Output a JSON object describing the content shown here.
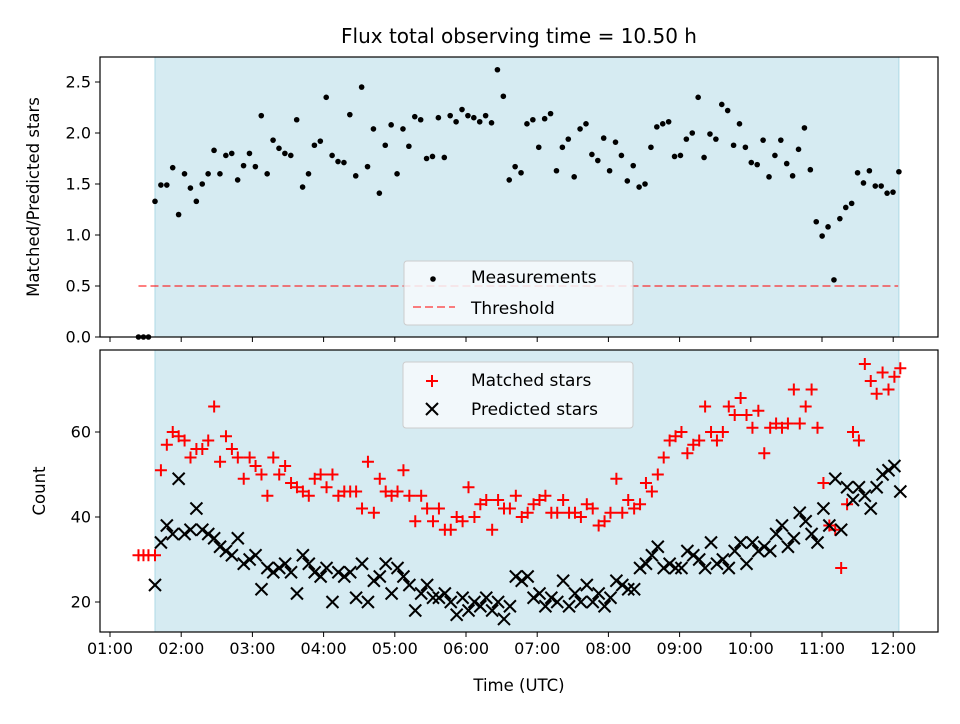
{
  "chart_data": [
    {
      "type": "scatter",
      "title": "Flux total observing time = 10.50 h",
      "xlabel": "",
      "ylabel": "Matched/Predicted stars",
      "ylim": [
        0,
        2.75
      ],
      "xlim_hours": [
        0.86,
        12.63
      ],
      "yticks": [
        "0.0",
        "0.5",
        "1.0",
        "1.5",
        "2.0",
        "2.5"
      ],
      "ytick_values": [
        0,
        0.5,
        1.0,
        1.5,
        2.0,
        2.5
      ],
      "shaded_span_hours": [
        1.632,
        12.08
      ],
      "shade_color": "#add8e6",
      "threshold": {
        "name": "Threshold",
        "value": 0.5,
        "from_hours": 1.4,
        "to_hours": 12.07,
        "color": "#ff0000",
        "style": "dashed"
      },
      "legend": {
        "position": "lower-center",
        "entries": [
          "Measurements",
          "Threshold"
        ]
      },
      "series": [
        {
          "name": "Measurements",
          "marker": "dot",
          "color": "#000000",
          "t_start_hours": 1.4,
          "t_end_hours": 1.54,
          "values": [
            0,
            0,
            0
          ]
        },
        {
          "name": "Measurements",
          "marker": "dot",
          "color": "#000000",
          "t_start_hours": 1.632,
          "t_end_hours": 12.08,
          "values": [
            1.33,
            1.49,
            1.49,
            1.66,
            1.2,
            1.6,
            1.46,
            1.33,
            1.5,
            1.6,
            1.83,
            1.6,
            1.78,
            1.8,
            1.54,
            1.68,
            1.8,
            1.67,
            2.17,
            1.6,
            1.93,
            1.85,
            1.8,
            1.78,
            2.13,
            1.47,
            1.6,
            1.88,
            1.92,
            2.35,
            1.78,
            1.72,
            1.71,
            2.18,
            1.58,
            2.45,
            1.67,
            2.04,
            1.41,
            1.88,
            2.08,
            1.6,
            2.04,
            1.87,
            2.16,
            2.13,
            1.75,
            1.77,
            2.15,
            1.76,
            2.17,
            2.11,
            2.23,
            2.17,
            2.15,
            2.11,
            2.17,
            2.1,
            2.62,
            2.36,
            1.54,
            1.67,
            1.61,
            2.09,
            2.13,
            1.86,
            2.14,
            2.19,
            1.63,
            1.86,
            1.94,
            1.57,
            2.04,
            2.09,
            1.79,
            1.73,
            1.95,
            1.63,
            1.91,
            1.78,
            1.53,
            1.68,
            1.47,
            1.5,
            1.86,
            2.06,
            2.09,
            2.11,
            1.77,
            1.78,
            1.94,
            2.0,
            2.35,
            1.76,
            1.99,
            1.94,
            2.28,
            2.22,
            1.88,
            2.09,
            1.86,
            1.71,
            1.69,
            1.93,
            1.57,
            1.78,
            1.93,
            1.7,
            1.58,
            1.84,
            2.05,
            1.64,
            1.13,
            0.99,
            1.08,
            0.56,
            1.16,
            1.27,
            1.31,
            1.61,
            1.51,
            1.63,
            1.48,
            1.48,
            1.41,
            1.42,
            1.62
          ]
        }
      ]
    },
    {
      "type": "scatter",
      "title": "",
      "xlabel": "Time (UTC)",
      "ylabel": "Count",
      "ylim": [
        12.9,
        79.3
      ],
      "xlim_hours": [
        0.86,
        12.63
      ],
      "yticks": [
        "20",
        "40",
        "60"
      ],
      "ytick_values": [
        20,
        40,
        60
      ],
      "xticks": [
        "01:00",
        "02:00",
        "03:00",
        "04:00",
        "05:00",
        "06:00",
        "07:00",
        "08:00",
        "09:00",
        "10:00",
        "11:00",
        "12:00"
      ],
      "xtick_values_hours": [
        1,
        2,
        3,
        4,
        5,
        6,
        7,
        8,
        9,
        10,
        11,
        12
      ],
      "shaded_span_hours": [
        1.632,
        12.08
      ],
      "legend": {
        "position": "top-center",
        "entries": [
          "Matched stars",
          "Predicted stars"
        ]
      },
      "series": [
        {
          "name": "Matched stars",
          "marker": "plus",
          "color": "#ff0000",
          "t_start_hours": 1.4,
          "t_end_hours": 1.54,
          "values": [
            31,
            31,
            31
          ]
        },
        {
          "name": "Matched stars",
          "marker": "plus",
          "color": "#ff0000",
          "t_start_hours": 1.632,
          "t_end_hours": 12.1,
          "values": [
            31,
            51,
            57,
            60,
            59,
            58,
            54,
            56,
            56,
            58,
            66,
            53,
            59,
            56,
            54,
            49,
            54,
            52,
            50,
            45,
            54,
            50,
            52,
            48,
            47,
            46,
            45,
            49,
            50,
            47,
            50,
            45,
            46,
            46,
            46,
            42,
            53,
            41,
            49,
            46,
            45,
            46,
            51,
            45,
            39,
            45,
            42,
            39,
            42,
            37,
            37,
            40,
            39,
            47,
            40,
            43,
            44,
            37,
            44,
            42,
            42,
            45,
            40,
            41,
            43,
            44,
            45,
            41,
            41,
            44,
            41,
            41,
            40,
            43,
            42,
            38,
            39,
            41,
            49,
            41,
            44,
            42,
            43,
            48,
            46,
            50,
            54,
            58,
            59,
            60,
            55,
            57,
            58,
            66,
            60,
            58,
            60,
            66,
            64,
            68,
            64,
            61,
            65,
            55,
            61,
            62,
            61,
            62,
            70,
            62,
            66,
            70,
            61,
            48,
            38,
            37,
            28,
            43,
            60,
            58,
            76,
            72,
            69,
            74,
            70,
            73,
            75
          ]
        },
        {
          "name": "Predicted stars",
          "marker": "x",
          "color": "#000000",
          "t_start_hours": 1.632,
          "t_end_hours": 12.1,
          "values": [
            24,
            34,
            38,
            36,
            49,
            36,
            37,
            42,
            37,
            36,
            35,
            33,
            32,
            31,
            35,
            29,
            30,
            31,
            23,
            28,
            27,
            28,
            29,
            27,
            22,
            31,
            29,
            27,
            26,
            28,
            20,
            27,
            26,
            27,
            21,
            29,
            20,
            25,
            26,
            29,
            22,
            28,
            26,
            24,
            18,
            22,
            24,
            21,
            21,
            22,
            20,
            17,
            21,
            18,
            20,
            19,
            21,
            18,
            20,
            16,
            19,
            26,
            25,
            26,
            21,
            22,
            19,
            21,
            20,
            25,
            19,
            22,
            20,
            24,
            20,
            22,
            19,
            21,
            25,
            24,
            23,
            23,
            28,
            29,
            31,
            33,
            28,
            29,
            28,
            28,
            32,
            31,
            30,
            28,
            34,
            29,
            30,
            28,
            32,
            34,
            29,
            34,
            32,
            33,
            32,
            36,
            38,
            33,
            35,
            41,
            39,
            36,
            34,
            42,
            38,
            49,
            37,
            47,
            44,
            47,
            45,
            42,
            47,
            50,
            51,
            52,
            46
          ]
        }
      ]
    }
  ]
}
